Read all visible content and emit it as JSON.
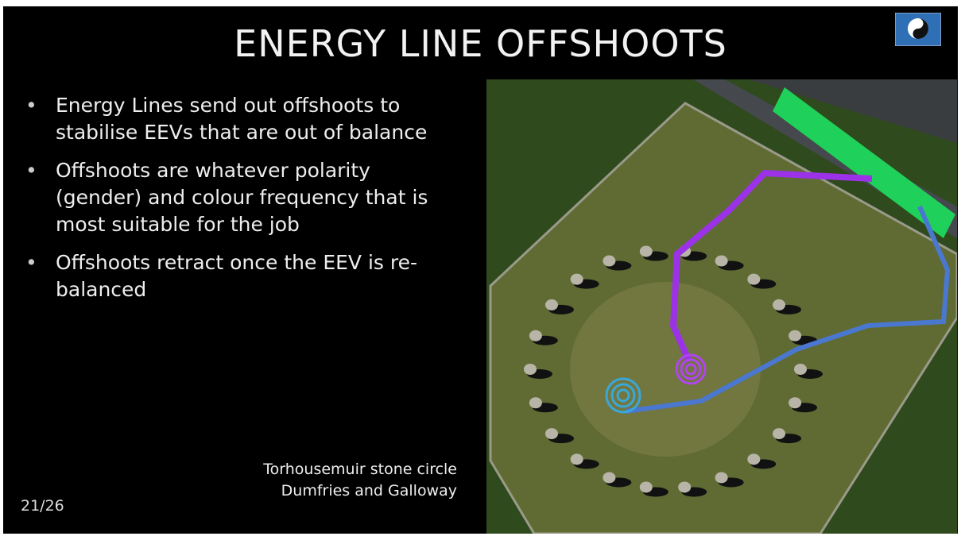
{
  "header": {
    "title": "ENERGY LINE OFFSHOOTS"
  },
  "bullets": [
    "Energy Lines send out offshoots to stabilise EEVs that are out of balance",
    "Offshoots are whatever polarity (gender) and colour frequency that is most suitable for the job",
    "Offshoots retract once the EEV is re-balanced"
  ],
  "caption": [
    "Torhousemuir stone circle",
    "Dumfries and Galloway"
  ],
  "footer": {
    "page": "21/26"
  }
}
